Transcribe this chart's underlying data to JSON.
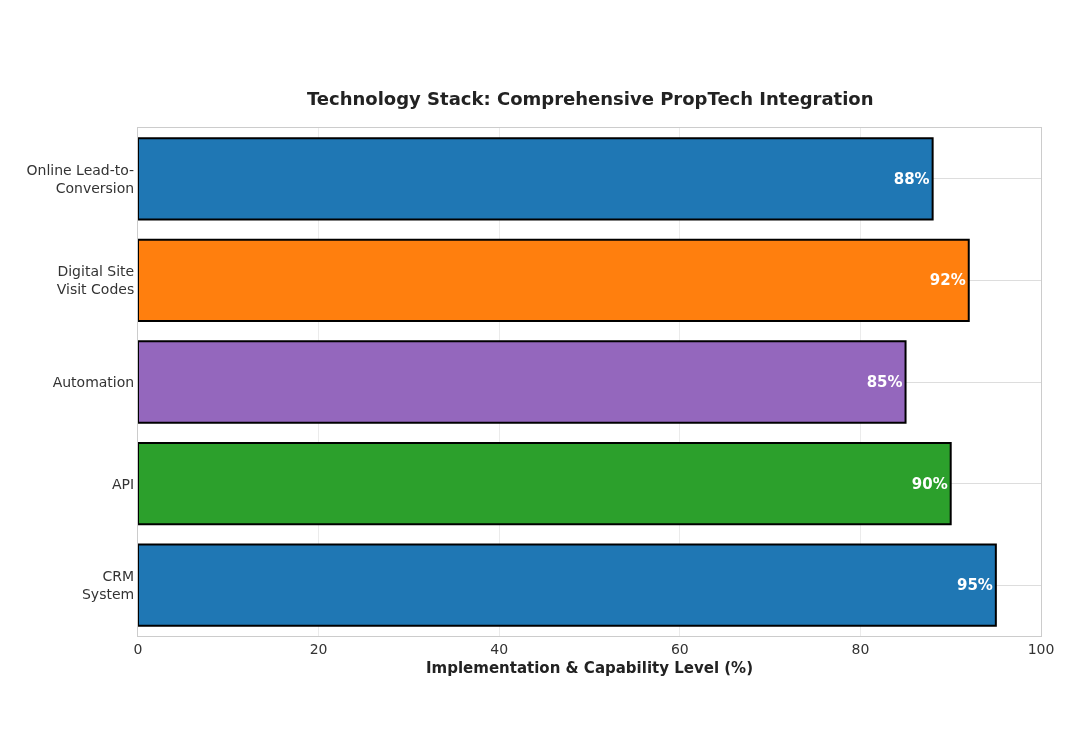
{
  "chart_data": {
    "type": "bar",
    "orientation": "horizontal",
    "title": "Technology Stack: Comprehensive PropTech Integration",
    "xlabel": "Implementation & Capability Level (%)",
    "categories": [
      "Online Lead-to-\nConversion",
      "Digital Site\nVisit Codes",
      "Automation",
      "API",
      "CRM\nSystem"
    ],
    "values": [
      88,
      92,
      85,
      90,
      95
    ],
    "colors": [
      "#1f77b4",
      "#ff7f0e",
      "#9467bd",
      "#2ca02c",
      "#1f77b4"
    ],
    "value_labels": [
      "88%",
      "92%",
      "85%",
      "90%",
      "95%"
    ],
    "xlim": [
      0,
      100
    ],
    "xticks": [
      0,
      20,
      40,
      60,
      80,
      100
    ],
    "grid": true
  }
}
